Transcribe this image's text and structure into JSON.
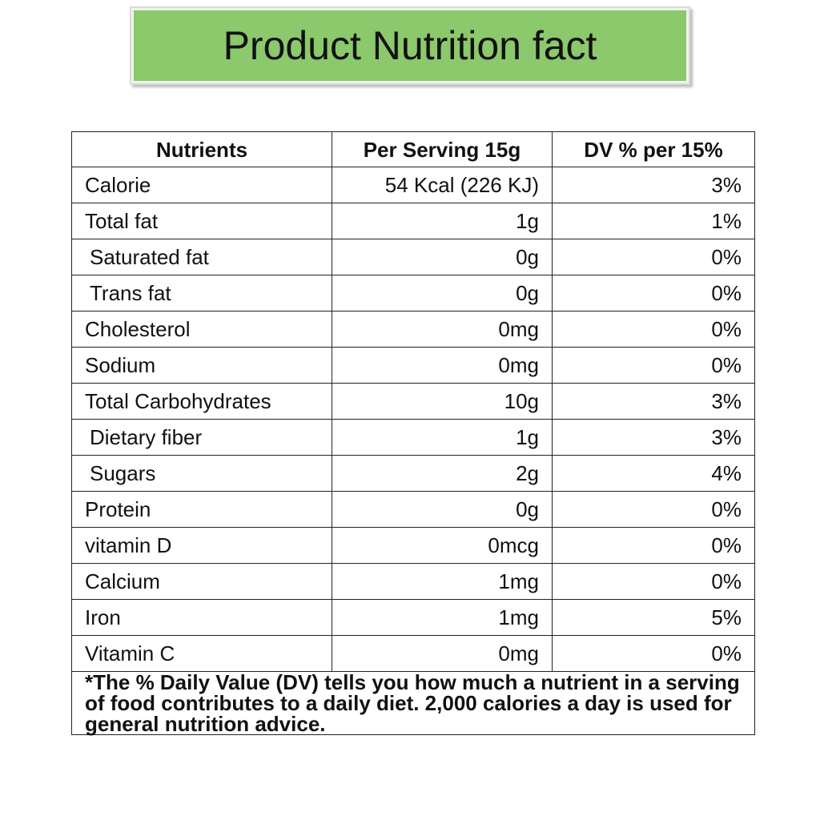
{
  "title": "Product Nutrition fact",
  "colors": {
    "title_bg": "#8cc86c",
    "border": "#222222"
  },
  "table": {
    "headers": [
      "Nutrients",
      "Per Serving 15g",
      "DV % per 15%"
    ],
    "rows": [
      {
        "name": "Calorie",
        "per_serving": "54 Kcal (226 KJ)",
        "dv": "3%"
      },
      {
        "name": "Total fat",
        "per_serving": "1g",
        "dv": "1%"
      },
      {
        "name": "Saturated fat",
        "per_serving": "0g",
        "dv": "0%"
      },
      {
        "name": "Trans fat",
        "per_serving": "0g",
        "dv": "0%"
      },
      {
        "name": "Cholesterol",
        "per_serving": "0mg",
        "dv": "0%"
      },
      {
        "name": "Sodium",
        "per_serving": "0mg",
        "dv": "0%"
      },
      {
        "name": "Total Carbohydrates",
        "per_serving": "10g",
        "dv": "3%"
      },
      {
        "name": "Dietary fiber",
        "per_serving": "1g",
        "dv": "3%"
      },
      {
        "name": "Sugars",
        "per_serving": "2g",
        "dv": "4%"
      },
      {
        "name": "Protein",
        "per_serving": "0g",
        "dv": "0%"
      },
      {
        "name": "vitamin D",
        "per_serving": "0mcg",
        "dv": "0%"
      },
      {
        "name": "Calcium",
        "per_serving": "1mg",
        "dv": "0%"
      },
      {
        "name": "Iron",
        "per_serving": "1mg",
        "dv": "5%"
      },
      {
        "name": "Vitamin C",
        "per_serving": "0mg",
        "dv": "0%"
      }
    ],
    "footnote": "*The % Daily Value (DV) tells you how much a nutrient in a serving of food contributes to a daily diet. 2,000 calories a day is used for general nutrition advice."
  }
}
